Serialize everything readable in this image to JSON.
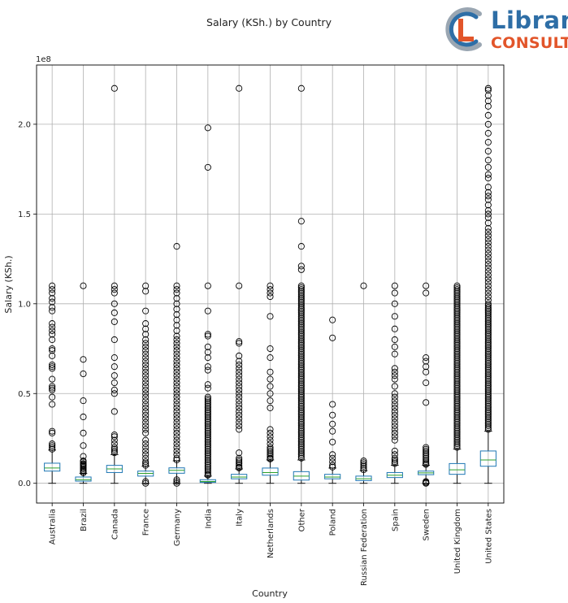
{
  "chart_data": {
    "type": "boxplot",
    "title": "Salary (KSh.) by Country",
    "xlabel": "Country",
    "ylabel": "Salary (KSh.)",
    "offset_text": "1e8",
    "grid": true,
    "ylim": [
      -0.11,
      2.33
    ],
    "yticks": [
      0.0,
      0.5,
      1.0,
      1.5,
      2.0
    ],
    "ytick_labels": [
      "0.0",
      "0.5",
      "1.0",
      "1.5",
      "2.0"
    ],
    "unit_scale": 100000000,
    "box_color": "#1f77b4",
    "median_color": "#2ca02c",
    "series": [
      {
        "category": "Australia",
        "whisker_low": 0.0,
        "q1": 0.068,
        "median": 0.085,
        "q3": 0.112,
        "whisker_high": 0.185,
        "outliers": [
          0.19,
          0.2,
          0.21,
          0.22,
          0.28,
          0.29,
          0.44,
          0.48,
          0.52,
          0.53,
          0.54,
          0.58,
          0.64,
          0.65,
          0.66,
          0.71,
          0.74,
          0.75,
          0.8,
          0.83,
          0.85,
          0.87,
          0.89,
          0.96,
          0.98,
          1.01,
          1.03,
          1.06,
          1.08,
          1.1
        ]
      },
      {
        "category": "Brazil",
        "whisker_low": 0.0,
        "q1": 0.012,
        "median": 0.02,
        "q3": 0.035,
        "whisker_high": 0.055,
        "outliers": [
          0.058,
          0.065,
          0.072,
          0.08,
          0.088,
          0.095,
          0.1,
          0.105,
          0.11,
          0.12,
          0.125,
          0.15,
          0.21,
          0.28,
          0.37,
          0.46,
          0.61,
          0.69,
          1.1
        ]
      },
      {
        "category": "Canada",
        "whisker_low": 0.0,
        "q1": 0.06,
        "median": 0.08,
        "q3": 0.1,
        "whisker_high": 0.16,
        "outliers": [
          0.17,
          0.18,
          0.19,
          0.2,
          0.22,
          0.24,
          0.26,
          0.27,
          0.4,
          0.5,
          0.52,
          0.56,
          0.6,
          0.65,
          0.7,
          0.8,
          0.9,
          0.95,
          1.0,
          1.06,
          1.08,
          1.1,
          2.2
        ]
      },
      {
        "category": "France",
        "whisker_low": 0.0,
        "q1": 0.04,
        "median": 0.055,
        "q3": 0.068,
        "whisker_high": 0.095,
        "outliers": [
          0.0,
          0.01,
          0.1,
          0.11,
          0.12,
          0.14,
          0.16,
          0.18,
          0.2,
          0.22,
          0.24,
          0.28,
          0.3,
          0.32,
          0.34,
          0.36,
          0.38,
          0.4,
          0.42,
          0.44,
          0.46,
          0.48,
          0.5,
          0.52,
          0.54,
          0.56,
          0.58,
          0.6,
          0.62,
          0.64,
          0.66,
          0.68,
          0.7,
          0.72,
          0.74,
          0.76,
          0.78,
          0.8,
          0.83,
          0.86,
          0.89,
          0.96,
          1.07,
          1.1
        ]
      },
      {
        "category": "Germany",
        "whisker_low": 0.0,
        "q1": 0.056,
        "median": 0.072,
        "q3": 0.086,
        "whisker_high": 0.125,
        "outliers": [
          0.0,
          0.01,
          0.02,
          0.13,
          0.14,
          0.16,
          0.18,
          0.2,
          0.22,
          0.24,
          0.26,
          0.28,
          0.3,
          0.32,
          0.34,
          0.36,
          0.38,
          0.4,
          0.42,
          0.44,
          0.46,
          0.48,
          0.5,
          0.52,
          0.54,
          0.56,
          0.58,
          0.6,
          0.62,
          0.64,
          0.66,
          0.68,
          0.7,
          0.72,
          0.74,
          0.76,
          0.78,
          0.8,
          0.82,
          0.85,
          0.88,
          0.91,
          0.94,
          0.97,
          1.0,
          1.03,
          1.06,
          1.08,
          1.1,
          1.32
        ]
      },
      {
        "category": "India",
        "whisker_low": 0.0,
        "q1": 0.005,
        "median": 0.01,
        "q3": 0.02,
        "whisker_high": 0.04,
        "outliers": [
          0.045,
          0.05,
          0.06,
          0.07,
          0.08,
          0.09,
          0.1,
          0.11,
          0.12,
          0.13,
          0.14,
          0.15,
          0.16,
          0.17,
          0.18,
          0.19,
          0.2,
          0.21,
          0.22,
          0.23,
          0.24,
          0.25,
          0.26,
          0.27,
          0.28,
          0.29,
          0.3,
          0.31,
          0.32,
          0.33,
          0.34,
          0.35,
          0.36,
          0.37,
          0.38,
          0.39,
          0.4,
          0.41,
          0.42,
          0.43,
          0.44,
          0.45,
          0.46,
          0.47,
          0.48,
          0.53,
          0.55,
          0.63,
          0.65,
          0.7,
          0.73,
          0.76,
          0.82,
          0.83,
          0.96,
          1.1,
          1.76,
          1.98
        ]
      },
      {
        "category": "Italy",
        "whisker_low": 0.0,
        "q1": 0.025,
        "median": 0.035,
        "q3": 0.05,
        "whisker_high": 0.08,
        "outliers": [
          0.085,
          0.09,
          0.1,
          0.11,
          0.12,
          0.13,
          0.14,
          0.17,
          0.3,
          0.32,
          0.34,
          0.36,
          0.38,
          0.4,
          0.42,
          0.44,
          0.46,
          0.48,
          0.5,
          0.52,
          0.54,
          0.56,
          0.58,
          0.6,
          0.62,
          0.64,
          0.66,
          0.68,
          0.71,
          0.78,
          0.79,
          1.1,
          2.2
        ]
      },
      {
        "category": "Netherlands",
        "whisker_low": 0.0,
        "q1": 0.045,
        "median": 0.06,
        "q3": 0.085,
        "whisker_high": 0.13,
        "outliers": [
          0.135,
          0.14,
          0.15,
          0.16,
          0.17,
          0.18,
          0.19,
          0.2,
          0.22,
          0.24,
          0.26,
          0.28,
          0.3,
          0.42,
          0.46,
          0.5,
          0.54,
          0.58,
          0.62,
          0.7,
          0.75,
          0.93,
          1.04,
          1.06,
          1.08,
          1.1
        ]
      },
      {
        "category": "Other",
        "whisker_low": 0.0,
        "q1": 0.018,
        "median": 0.04,
        "q3": 0.065,
        "whisker_high": 0.13,
        "outliers": [
          0.14,
          0.15,
          0.16,
          0.17,
          0.18,
          0.19,
          0.2,
          0.21,
          0.22,
          0.23,
          0.24,
          0.25,
          0.26,
          0.27,
          0.28,
          0.29,
          0.3,
          0.31,
          0.32,
          0.33,
          0.34,
          0.35,
          0.36,
          0.37,
          0.38,
          0.39,
          0.4,
          0.41,
          0.42,
          0.43,
          0.44,
          0.45,
          0.46,
          0.47,
          0.48,
          0.49,
          0.5,
          0.51,
          0.52,
          0.53,
          0.54,
          0.55,
          0.56,
          0.57,
          0.58,
          0.59,
          0.6,
          0.61,
          0.62,
          0.63,
          0.64,
          0.65,
          0.66,
          0.67,
          0.68,
          0.69,
          0.7,
          0.71,
          0.72,
          0.73,
          0.74,
          0.75,
          0.76,
          0.77,
          0.78,
          0.79,
          0.8,
          0.81,
          0.82,
          0.83,
          0.84,
          0.85,
          0.86,
          0.87,
          0.88,
          0.89,
          0.9,
          0.91,
          0.92,
          0.93,
          0.94,
          0.95,
          0.96,
          0.97,
          0.98,
          0.99,
          1.0,
          1.01,
          1.02,
          1.03,
          1.04,
          1.05,
          1.06,
          1.07,
          1.08,
          1.09,
          1.1,
          1.19,
          1.21,
          1.32,
          1.46,
          2.2
        ]
      },
      {
        "category": "Poland",
        "whisker_low": 0.0,
        "q1": 0.025,
        "median": 0.035,
        "q3": 0.05,
        "whisker_high": 0.085,
        "outliers": [
          0.09,
          0.1,
          0.12,
          0.14,
          0.16,
          0.23,
          0.29,
          0.33,
          0.38,
          0.44,
          0.81,
          0.91
        ]
      },
      {
        "category": "Russian Federation",
        "whisker_low": 0.0,
        "q1": 0.015,
        "median": 0.025,
        "q3": 0.04,
        "whisker_high": 0.07,
        "outliers": [
          0.075,
          0.085,
          0.095,
          0.105,
          0.115,
          0.125,
          1.1
        ]
      },
      {
        "category": "Spain",
        "whisker_low": 0.0,
        "q1": 0.032,
        "median": 0.045,
        "q3": 0.06,
        "whisker_high": 0.1,
        "outliers": [
          0.11,
          0.12,
          0.13,
          0.14,
          0.16,
          0.18,
          0.24,
          0.26,
          0.28,
          0.3,
          0.32,
          0.34,
          0.36,
          0.38,
          0.4,
          0.42,
          0.44,
          0.46,
          0.48,
          0.5,
          0.54,
          0.58,
          0.6,
          0.62,
          0.64,
          0.72,
          0.76,
          0.8,
          0.86,
          0.93,
          1.0,
          1.06,
          1.1
        ]
      },
      {
        "category": "Sweden",
        "whisker_low": 0.0,
        "q1": 0.048,
        "median": 0.058,
        "q3": 0.068,
        "whisker_high": 0.1,
        "outliers": [
          0.0,
          0.005,
          0.01,
          0.105,
          0.11,
          0.12,
          0.13,
          0.14,
          0.15,
          0.16,
          0.17,
          0.18,
          0.19,
          0.2,
          0.45,
          0.56,
          0.62,
          0.65,
          0.68,
          0.7,
          1.06,
          1.1
        ]
      },
      {
        "category": "United Kingdom",
        "whisker_low": 0.0,
        "q1": 0.05,
        "median": 0.075,
        "q3": 0.11,
        "whisker_high": 0.19,
        "outliers": [
          0.2,
          0.21,
          0.22,
          0.23,
          0.24,
          0.25,
          0.26,
          0.27,
          0.28,
          0.29,
          0.3,
          0.31,
          0.32,
          0.33,
          0.34,
          0.35,
          0.36,
          0.37,
          0.38,
          0.39,
          0.4,
          0.41,
          0.42,
          0.43,
          0.44,
          0.45,
          0.46,
          0.47,
          0.48,
          0.49,
          0.5,
          0.51,
          0.52,
          0.53,
          0.54,
          0.55,
          0.56,
          0.57,
          0.58,
          0.59,
          0.6,
          0.61,
          0.62,
          0.63,
          0.64,
          0.65,
          0.66,
          0.67,
          0.68,
          0.69,
          0.7,
          0.71,
          0.72,
          0.73,
          0.74,
          0.75,
          0.76,
          0.77,
          0.78,
          0.79,
          0.8,
          0.81,
          0.82,
          0.83,
          0.84,
          0.85,
          0.86,
          0.87,
          0.88,
          0.89,
          0.9,
          0.91,
          0.92,
          0.93,
          0.94,
          0.95,
          0.96,
          0.97,
          0.98,
          0.99,
          1.0,
          1.01,
          1.02,
          1.03,
          1.04,
          1.05,
          1.06,
          1.07,
          1.08,
          1.09,
          1.1
        ]
      },
      {
        "category": "United States",
        "whisker_low": 0.0,
        "q1": 0.095,
        "median": 0.13,
        "q3": 0.18,
        "whisker_high": 0.29,
        "outliers": [
          0.3,
          0.31,
          0.32,
          0.33,
          0.34,
          0.35,
          0.36,
          0.37,
          0.38,
          0.39,
          0.4,
          0.41,
          0.42,
          0.43,
          0.44,
          0.45,
          0.46,
          0.47,
          0.48,
          0.49,
          0.5,
          0.51,
          0.52,
          0.53,
          0.54,
          0.55,
          0.56,
          0.57,
          0.58,
          0.59,
          0.6,
          0.61,
          0.62,
          0.63,
          0.64,
          0.65,
          0.66,
          0.67,
          0.68,
          0.69,
          0.7,
          0.71,
          0.72,
          0.73,
          0.74,
          0.75,
          0.76,
          0.77,
          0.78,
          0.79,
          0.8,
          0.81,
          0.82,
          0.83,
          0.84,
          0.85,
          0.86,
          0.87,
          0.88,
          0.89,
          0.9,
          0.91,
          0.92,
          0.93,
          0.94,
          0.95,
          0.96,
          0.97,
          0.98,
          0.99,
          1.0,
          1.02,
          1.04,
          1.06,
          1.08,
          1.1,
          1.12,
          1.14,
          1.16,
          1.18,
          1.2,
          1.22,
          1.24,
          1.26,
          1.28,
          1.3,
          1.32,
          1.34,
          1.36,
          1.38,
          1.4,
          1.42,
          1.45,
          1.48,
          1.5,
          1.52,
          1.55,
          1.58,
          1.6,
          1.62,
          1.65,
          1.7,
          1.72,
          1.76,
          1.8,
          1.85,
          1.9,
          1.95,
          2.0,
          2.05,
          2.1,
          2.13,
          2.16,
          2.19,
          2.2
        ]
      }
    ]
  },
  "logo": {
    "word1": "Libran",
    "word2": "CONSULT",
    "colors": {
      "blue": "#2e6ea6",
      "orange": "#e2552a",
      "gray": "#9aa6b2"
    }
  }
}
